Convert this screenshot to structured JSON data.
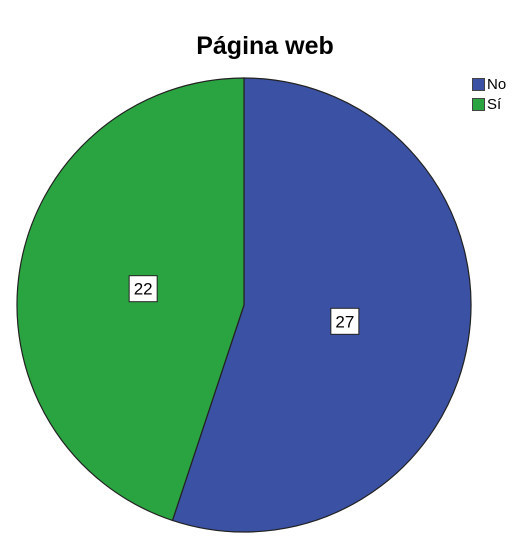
{
  "chart_data": {
    "type": "pie",
    "title": "Página web",
    "categories": [
      "No",
      "Sí"
    ],
    "values": [
      27,
      22
    ],
    "colors": [
      "#3b51a3",
      "#2aa440"
    ],
    "data_labels": [
      "27",
      "22"
    ],
    "legend": {
      "placement": "top-right",
      "entries": [
        "No",
        "Sí"
      ]
    },
    "start": "12 o'clock, clockwise"
  }
}
